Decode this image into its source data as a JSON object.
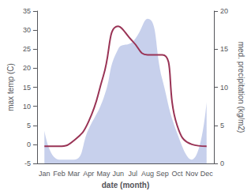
{
  "chart_data": {
    "type": "line",
    "categories": [
      "Jan",
      "Feb",
      "Mar",
      "Apr",
      "May",
      "Jun",
      "Jul",
      "Aug",
      "Sep",
      "Oct",
      "Nov",
      "Dec"
    ],
    "xlabel": "date (month)",
    "ylabel": "max temp (C)",
    "y2label": "med. precipitation (kg/m2)",
    "series": [
      {
        "type": "area",
        "color": "#99aadd",
        "axis": "y2",
        "values": [
          4.3,
          0.5,
          0.5,
          4.5,
          8.5,
          15,
          16,
          19,
          11,
          4,
          0.5,
          8
        ]
      },
      {
        "type": "line",
        "color": "#993355",
        "values": [
          -0.5,
          -0.5,
          1,
          6,
          18,
          31,
          27,
          23.5,
          23.5,
          5,
          0,
          -0.5
        ]
      }
    ],
    "ylim": [
      -5,
      35
    ],
    "yticks": [
      -5,
      0,
      5,
      10,
      15,
      20,
      25,
      30,
      35
    ],
    "y2lim": [
      0,
      20
    ],
    "y2ticks": [
      0,
      5,
      10,
      15,
      20
    ],
    "grid": false
  }
}
